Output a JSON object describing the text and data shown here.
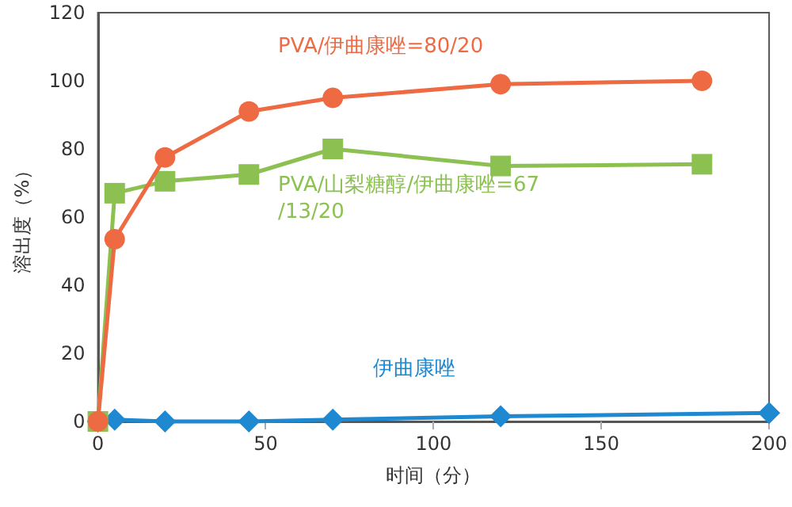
{
  "chart_data": {
    "type": "line",
    "xlabel": "时间（分）",
    "ylabel": "溶出度（%）",
    "xlim": [
      0,
      200
    ],
    "xticks": [
      0,
      50,
      100,
      150,
      200
    ],
    "ylim": [
      0,
      120
    ],
    "yticks": [
      0,
      20,
      40,
      60,
      80,
      100,
      120
    ],
    "grid": false,
    "legend": false,
    "series": [
      {
        "name": "PVA/伊曲康唑=80/20",
        "color": "#ee6a43",
        "marker": "circle",
        "x": [
          0,
          5,
          20,
          45,
          70,
          120,
          180
        ],
        "values": [
          0,
          53.5,
          77.5,
          91,
          95,
          99,
          100
        ]
      },
      {
        "name": "PVA/山梨糖醇/伊曲康唑=67/13/20",
        "color": "#8cc152",
        "marker": "square",
        "x": [
          0,
          5,
          20,
          45,
          70,
          120,
          180
        ],
        "values": [
          0,
          67,
          70.5,
          72.5,
          80,
          75,
          75.5
        ]
      },
      {
        "name": "伊曲康唑",
        "color": "#1e88d0",
        "marker": "diamond",
        "x": [
          0,
          5,
          20,
          45,
          70,
          120,
          200
        ],
        "values": [
          0,
          0.5,
          0,
          0,
          0.5,
          1.5,
          2.5
        ]
      }
    ]
  }
}
